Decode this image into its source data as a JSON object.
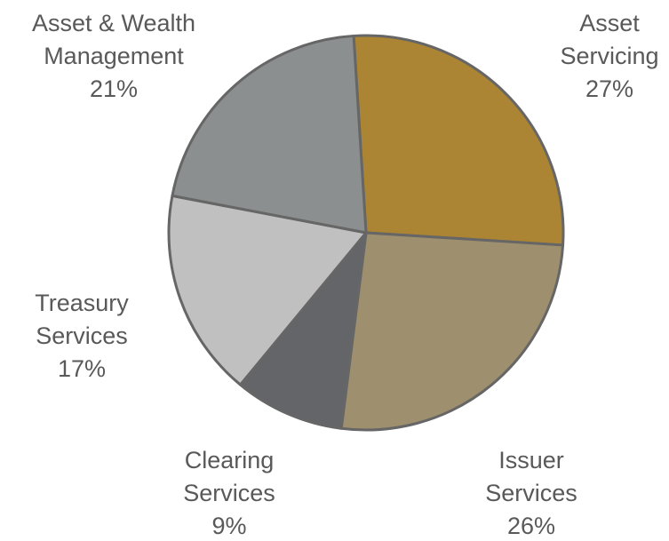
{
  "chart_data": {
    "type": "pie",
    "categories": [
      "Asset Servicing",
      "Issuer Services",
      "Clearing Services",
      "Treasury Services",
      "Asset & Wealth Management"
    ],
    "values": [
      27,
      26,
      9,
      17,
      21
    ],
    "value_labels": [
      "27%",
      "26%",
      "9%",
      "17%",
      "21%"
    ],
    "colors": [
      "#ab8533",
      "#9e8f6e",
      "#646569",
      "#c0c0c0",
      "#8c8f8f"
    ]
  }
}
